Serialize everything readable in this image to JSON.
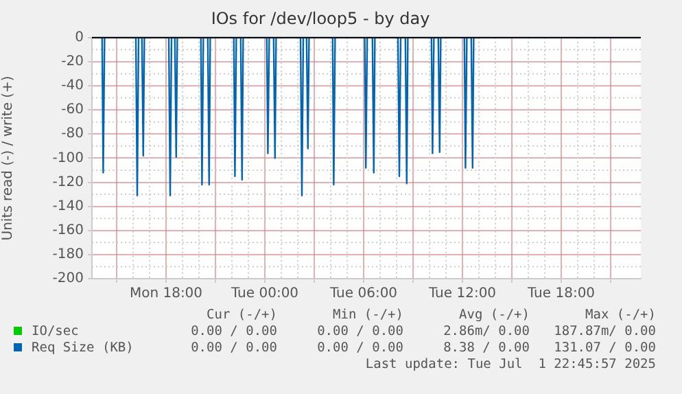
{
  "chart_data": {
    "type": "line",
    "title": "IOs for /dev/loop5 - by day",
    "ylabel": "Units read (-) / write (+)",
    "xlim": [
      "2025-06-30T13:30",
      "2025-07-01T22:50"
    ],
    "xticks": [
      {
        "value": "2025-06-30T15:00",
        "label": null
      },
      {
        "value": "2025-06-30T18:00",
        "label": "Mon 18:00"
      },
      {
        "value": "2025-06-30T21:00",
        "label": null
      },
      {
        "value": "2025-07-01T00:00",
        "label": "Tue 00:00"
      },
      {
        "value": "2025-07-01T03:00",
        "label": null
      },
      {
        "value": "2025-07-01T06:00",
        "label": "Tue 06:00"
      },
      {
        "value": "2025-07-01T09:00",
        "label": null
      },
      {
        "value": "2025-07-01T12:00",
        "label": "Tue 12:00"
      },
      {
        "value": "2025-07-01T15:00",
        "label": null
      },
      {
        "value": "2025-07-01T18:00",
        "label": "Tue 18:00"
      },
      {
        "value": "2025-07-01T21:00",
        "label": null
      }
    ],
    "ylim": [
      -200,
      0
    ],
    "yticks": [
      -200,
      -180,
      -160,
      -140,
      -120,
      -100,
      -80,
      -60,
      -40,
      -20,
      0
    ],
    "grid": true,
    "legend": "bottom left",
    "marker": "none",
    "line_style": "solid",
    "series": [
      {
        "name": "IO/sec",
        "color": "#00cc00"
      },
      {
        "name": "Req Size (KB)",
        "color": "#0066b3",
        "x": [
          "2025-06-30T13:30",
          "2025-06-30T14:07",
          "2025-06-30T14:11",
          "2025-06-30T14:16",
          "2025-06-30T16:10",
          "2025-06-30T16:15",
          "2025-06-30T16:20",
          "2025-06-30T16:32",
          "2025-06-30T16:37",
          "2025-06-30T16:41",
          "2025-06-30T18:10",
          "2025-06-30T18:15",
          "2025-06-30T18:20",
          "2025-06-30T18:32",
          "2025-06-30T18:37",
          "2025-06-30T18:41",
          "2025-06-30T20:07",
          "2025-06-30T20:11",
          "2025-06-30T20:16",
          "2025-06-30T20:32",
          "2025-06-30T20:37",
          "2025-06-30T20:41",
          "2025-06-30T22:07",
          "2025-06-30T22:11",
          "2025-06-30T22:16",
          "2025-06-30T22:32",
          "2025-06-30T22:37",
          "2025-06-30T22:41",
          "2025-07-01T00:07",
          "2025-07-01T00:11",
          "2025-07-01T00:16",
          "2025-07-01T00:32",
          "2025-07-01T00:37",
          "2025-07-01T00:41",
          "2025-07-01T02:10",
          "2025-07-01T02:15",
          "2025-07-01T02:20",
          "2025-07-01T02:32",
          "2025-07-01T02:37",
          "2025-07-01T02:41",
          "2025-07-01T04:07",
          "2025-07-01T04:11",
          "2025-07-01T04:16",
          "2025-07-01T06:04",
          "2025-07-01T06:08",
          "2025-07-01T06:13",
          "2025-07-01T06:32",
          "2025-07-01T06:37",
          "2025-07-01T06:41",
          "2025-07-01T08:05",
          "2025-07-01T08:10",
          "2025-07-01T08:15",
          "2025-07-01T08:32",
          "2025-07-01T08:37",
          "2025-07-01T08:41",
          "2025-07-01T10:07",
          "2025-07-01T10:11",
          "2025-07-01T10:16",
          "2025-07-01T10:32",
          "2025-07-01T10:37",
          "2025-07-01T10:41",
          "2025-07-01T12:07",
          "2025-07-01T12:11",
          "2025-07-01T12:16",
          "2025-07-01T12:32",
          "2025-07-01T12:37",
          "2025-07-01T12:41",
          "2025-07-01T22:45"
        ],
        "values": [
          0,
          0,
          -112,
          0,
          0,
          -131,
          0,
          0,
          -98,
          0,
          0,
          -131,
          0,
          0,
          -99,
          0,
          0,
          -122,
          0,
          0,
          -122,
          0,
          0,
          -115,
          0,
          0,
          -118,
          0,
          0,
          -96,
          0,
          0,
          -100,
          0,
          0,
          -131,
          0,
          0,
          -92,
          0,
          0,
          -122,
          0,
          0,
          -108,
          0,
          0,
          -112,
          0,
          0,
          -115,
          0,
          0,
          -121,
          0,
          0,
          -96,
          0,
          0,
          -95,
          0,
          0,
          -108,
          0,
          0,
          -108,
          0,
          0
        ]
      }
    ],
    "annotations": [
      "Cur (-/+)",
      "Min (-/+)",
      "Avg (-/+)",
      "Max (-/+)",
      "0.00 / 0.00",
      "0.00 / 0.00",
      "2.86m/ 0.00",
      "187.87m/ 0.00",
      "0.00 / 0.00",
      "0.00 / 0.00",
      "8.38 / 0.00",
      "131.07 / 0.00",
      "Last update: Tue Jul  1 22:45:57 2025"
    ]
  }
}
